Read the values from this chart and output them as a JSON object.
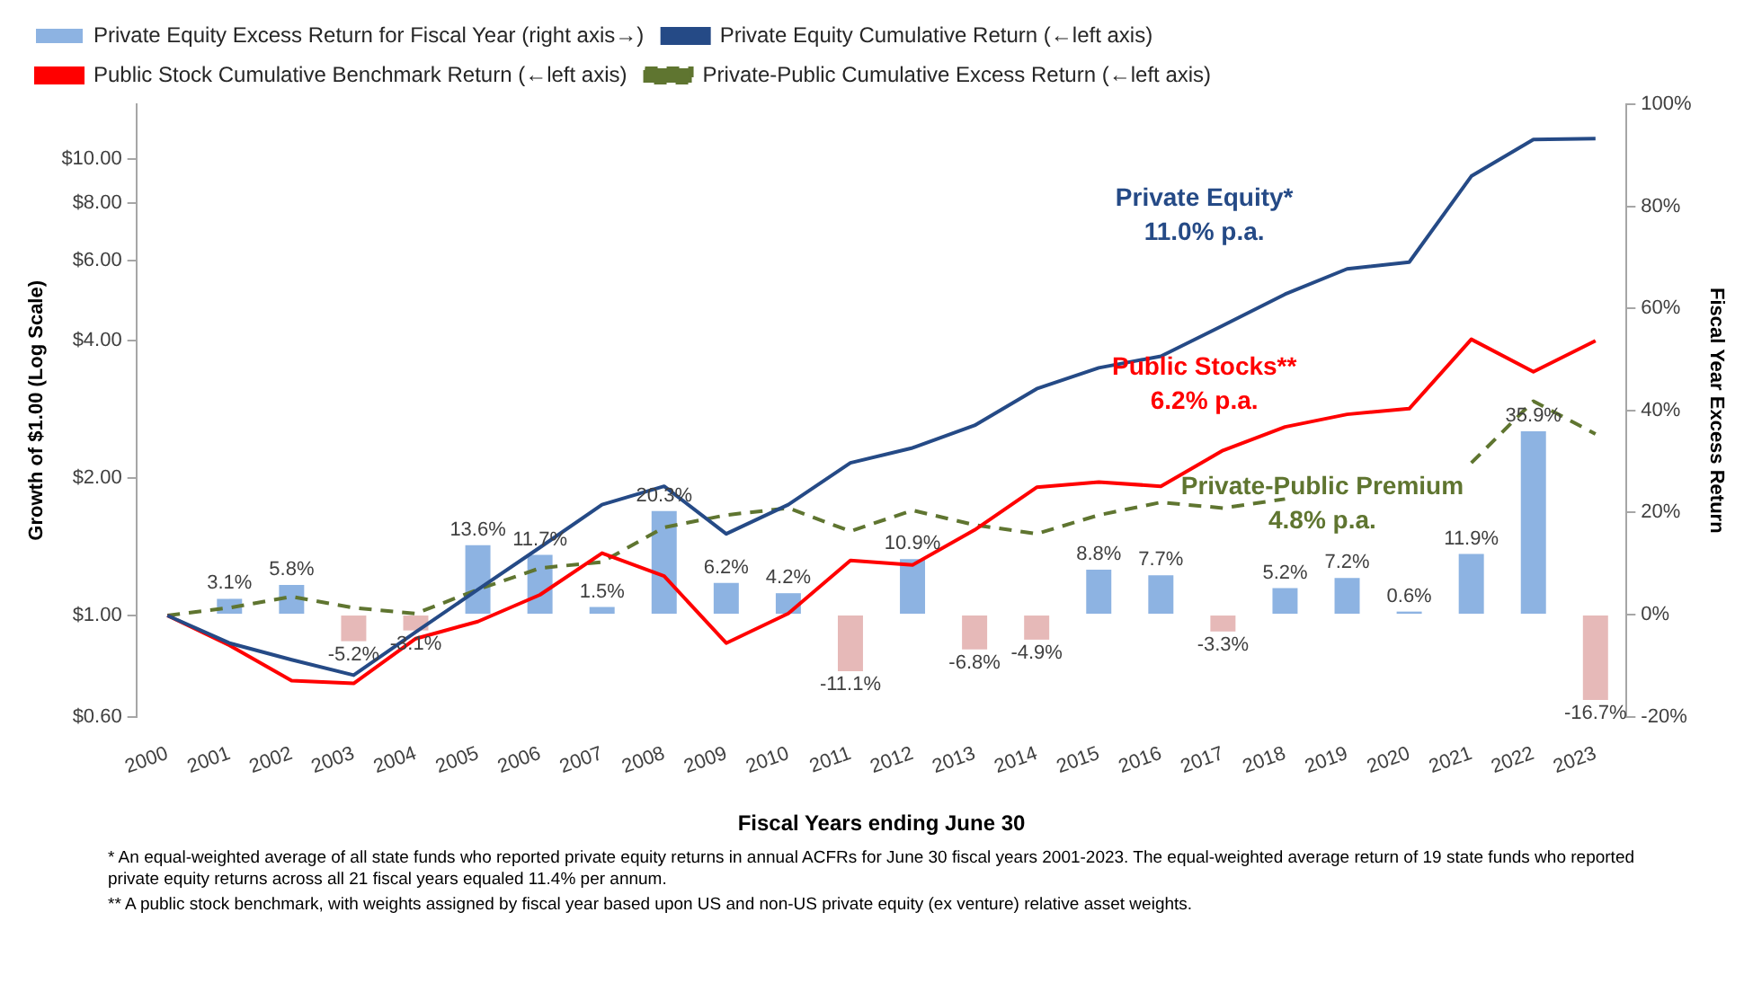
{
  "chart_data": {
    "type": "bar",
    "categories": [
      "2000",
      "2001",
      "2002",
      "2003",
      "2004",
      "2005",
      "2006",
      "2007",
      "2008",
      "2009",
      "2010",
      "2011",
      "2012",
      "2013",
      "2014",
      "2015",
      "2016",
      "2017",
      "2018",
      "2019",
      "2020",
      "2021",
      "2022",
      "2023"
    ],
    "series": [
      {
        "name": "Private Equity Excess Return for Fiscal Year (right axis→)",
        "axis": "y2",
        "color": "#8db3e2",
        "colors": [
          null,
          "#8db3e2",
          "#8db3e2",
          "#e6b9b8",
          "#e6b9b8",
          "#8db3e2",
          "#8db3e2",
          "#8db3e2",
          "#8db3e2",
          "#8db3e2",
          "#8db3e2",
          "#e6b9b8",
          "#8db3e2",
          "#e6b9b8",
          "#e6b9b8",
          "#8db3e2",
          "#8db3e2",
          "#e6b9b8",
          "#8db3e2",
          "#8db3e2",
          "#8db3e2",
          "#8db3e2",
          "#8db3e2",
          "#e6b9b8"
        ],
        "values": [
          null,
          3.1,
          5.8,
          -5.2,
          -3.1,
          13.6,
          11.7,
          1.5,
          20.3,
          6.2,
          4.2,
          -11.1,
          10.9,
          -6.8,
          -4.9,
          8.8,
          7.7,
          -3.3,
          5.2,
          7.2,
          0.6,
          11.9,
          35.9,
          -16.7
        ],
        "value_labels": [
          null,
          "3.1%",
          "5.8%",
          "-5.2%",
          "-3.1%",
          "13.6%",
          "11.7%",
          "1.5%",
          "20.3%",
          "6.2%",
          "4.2%",
          "-11.1%",
          "10.9%",
          "-6.8%",
          "-4.9%",
          "8.8%",
          "7.7%",
          "-3.3%",
          "5.2%",
          "7.2%",
          "0.6%",
          "11.9%",
          "35.9%",
          "-16.7%"
        ]
      },
      {
        "name": "Private Equity Cumulative Return (←left axis)",
        "type": "line",
        "axis": "y",
        "color": "#254a86",
        "line_style": "solid",
        "values": [
          1.0,
          0.87,
          0.8,
          0.74,
          0.92,
          1.14,
          1.41,
          1.75,
          1.92,
          1.51,
          1.75,
          2.16,
          2.33,
          2.61,
          3.14,
          3.49,
          3.7,
          4.32,
          5.06,
          5.75,
          5.95,
          9.18,
          11.05,
          11.1
        ]
      },
      {
        "name": "Public Stock Cumulative Benchmark Return (←left axis)",
        "type": "line",
        "axis": "y",
        "color": "#ff0000",
        "line_style": "solid",
        "values": [
          1.0,
          0.86,
          0.72,
          0.71,
          0.89,
          0.97,
          1.11,
          1.37,
          1.22,
          0.87,
          1.01,
          1.32,
          1.29,
          1.54,
          1.91,
          1.96,
          1.92,
          2.3,
          2.59,
          2.76,
          2.84,
          4.03,
          3.42,
          4.0
        ]
      },
      {
        "name": "Private-Public Cumulative Excess Return (←left axis)",
        "type": "line",
        "axis": "y",
        "color": "#5f7530",
        "line_style": "dashed",
        "values": [
          1.0,
          1.04,
          1.1,
          1.04,
          1.01,
          1.14,
          1.27,
          1.31,
          1.56,
          1.66,
          1.72,
          1.53,
          1.7,
          1.58,
          1.51,
          1.66,
          1.77,
          1.72,
          1.8,
          null,
          null,
          2.16,
          2.95,
          2.5
        ]
      }
    ],
    "xlabel": "Fiscal Years ending June 30",
    "ylabel": "Growth of $1.00 (Log Scale)",
    "y2label": "Fiscal Year Excess Return",
    "log": "y",
    "ylim": [
      0.6,
      13.2
    ],
    "yticks": [
      {
        "value": 0.6,
        "label": "$0.60"
      },
      {
        "value": 1,
        "label": "$1.00"
      },
      {
        "value": 2,
        "label": "$2.00"
      },
      {
        "value": 4,
        "label": "$4.00"
      },
      {
        "value": 6,
        "label": "$6.00"
      },
      {
        "value": 8,
        "label": "$8.00"
      },
      {
        "value": 10,
        "label": "$10.00"
      }
    ],
    "y2lim": [
      -20,
      100
    ],
    "y2ticks": [
      {
        "value": -20,
        "label": "-20%"
      },
      {
        "value": 0,
        "label": "0%"
      },
      {
        "value": 20,
        "label": "20%"
      },
      {
        "value": 40,
        "label": "40%"
      },
      {
        "value": 60,
        "label": "60%"
      },
      {
        "value": 80,
        "label": "80%"
      },
      {
        "value": 100,
        "label": "100%"
      }
    ],
    "grid": false,
    "legend": "top left",
    "marker": "none",
    "annotations": [
      "Private Equity*\n11.0% p.a.",
      "Public Stocks**\n6.2% p.a.",
      "Private-Public Premium\n4.8% p.a.",
      "*  An equal-weighted average of all state funds who reported  private equity returns in annual ACFRs for June 30 fiscal years 2001-2023.  The equal-weighted average return of 19 state funds who reported private equity returns across all 21 fiscal years equaled 11.4% per annum.",
      "** A public stock benchmark, with weights assigned by fiscal year based upon US and non-US private equity (ex venture) relative asset weights."
    ]
  }
}
